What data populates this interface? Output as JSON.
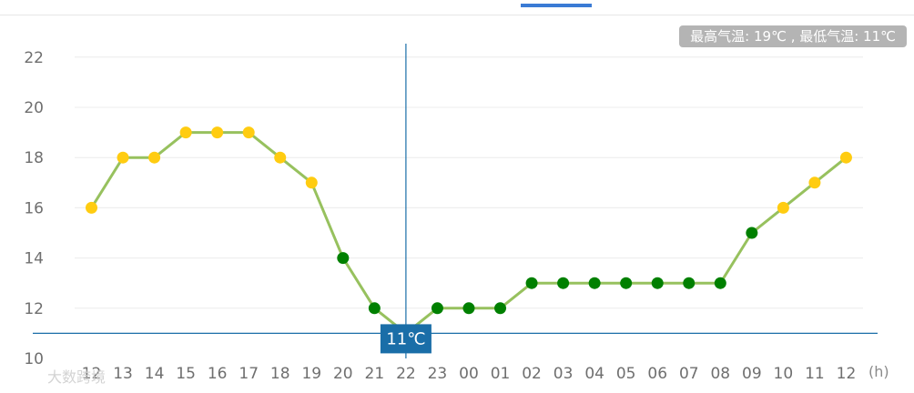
{
  "header": {
    "summary": "最高气温: 19℃ , 最低气温: 11℃"
  },
  "watermark": "大数跨境",
  "crosshair_label": "11℃",
  "colors": {
    "line": "#97c15e",
    "point_warm": "#ffcc11",
    "point_cool": "#008000",
    "crosshair": "#1a6ea8",
    "tab_indicator": "#3a7bd5"
  },
  "chart_data": {
    "type": "line",
    "x_unit": "(h)",
    "categories": [
      "12",
      "13",
      "14",
      "15",
      "16",
      "17",
      "18",
      "19",
      "20",
      "21",
      "22",
      "23",
      "00",
      "01",
      "02",
      "03",
      "04",
      "05",
      "06",
      "07",
      "08",
      "09",
      "10",
      "11",
      "12"
    ],
    "values": [
      16,
      18,
      18,
      19,
      19,
      19,
      18,
      17,
      14,
      12,
      11,
      12,
      12,
      12,
      13,
      13,
      13,
      13,
      13,
      13,
      13,
      15,
      16,
      17,
      18
    ],
    "point_colors": [
      "warm",
      "warm",
      "warm",
      "warm",
      "warm",
      "warm",
      "warm",
      "warm",
      "cool",
      "cool",
      "cool",
      "cool",
      "cool",
      "cool",
      "cool",
      "cool",
      "cool",
      "cool",
      "cool",
      "cool",
      "cool",
      "cool",
      "warm",
      "warm",
      "warm"
    ],
    "yticks": [
      10,
      12,
      14,
      16,
      18,
      20,
      22
    ],
    "ylim": [
      10,
      22
    ],
    "grid": true,
    "crosshair": {
      "category_index": 10,
      "value": 11
    }
  }
}
